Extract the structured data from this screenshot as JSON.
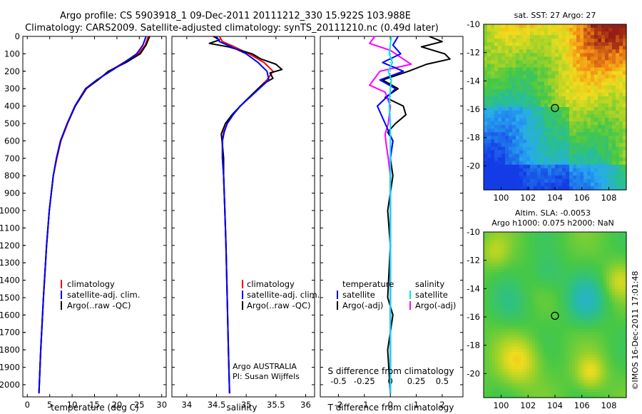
{
  "title": {
    "line1": "Argo profile: CS 5903918_1 09-Dec-2011 20111212_330 15.922S 103.988E",
    "line2": "Climatology: CARS2009. Satellite-adjusted climatology: synTS_20111210.nc (0.49d later)"
  },
  "colors": {
    "climatology": "#ff0000",
    "satellite_adj": "#0000ff",
    "argo": "#000000",
    "salinity_satellite": "#00e5ee",
    "salinity_argo": "#ff00ff"
  },
  "depth_axis": {
    "ticks": [
      "0",
      "100",
      "200",
      "300",
      "400",
      "500",
      "600",
      "700",
      "800",
      "900",
      "1000",
      "1100",
      "1200",
      "1300",
      "1400",
      "1500",
      "1600",
      "1700",
      "1800",
      "1900",
      "2000"
    ],
    "range": [
      0,
      2070
    ]
  },
  "chart_data": [
    {
      "type": "line",
      "name": "temperature-profile",
      "xlabel": "temperature (deg C)",
      "xlim": [
        -1,
        31
      ],
      "xticks": [
        "0",
        "5",
        "10",
        "15",
        "20",
        "25",
        "30"
      ],
      "ylim": [
        0,
        2070
      ],
      "legend": [
        "climatology",
        "satellite-adj. clim.",
        "Argo(..raw -QC)"
      ],
      "series": [
        {
          "name": "climatology",
          "depth": [
            0,
            50,
            100,
            150,
            200,
            250,
            300,
            400,
            500,
            600,
            700,
            800,
            1000,
            1200,
            1500,
            1800,
            2050
          ],
          "values": [
            27.0,
            26.3,
            24.8,
            21.5,
            18.3,
            15.6,
            13.2,
            10.7,
            9.0,
            7.5,
            6.6,
            5.8,
            4.9,
            4.3,
            3.6,
            3.0,
            2.6
          ]
        },
        {
          "name": "satellite-adj. clim.",
          "depth": [
            0,
            50,
            100,
            150,
            200,
            250,
            300,
            400,
            500,
            600,
            700,
            800,
            1000,
            1200,
            1500,
            1800,
            2050
          ],
          "values": [
            26.5,
            25.8,
            24.4,
            21.6,
            18.6,
            15.5,
            13.0,
            10.6,
            8.9,
            7.4,
            6.5,
            5.8,
            4.9,
            4.3,
            3.6,
            3.0,
            2.6
          ]
        },
        {
          "name": "Argo(..raw -QC)",
          "depth": [
            0,
            50,
            100,
            150,
            200,
            250,
            300,
            400,
            500,
            600,
            700,
            800,
            1000,
            1200,
            1500,
            1800,
            2050
          ],
          "values": [
            27.3,
            26.5,
            25.2,
            22.0,
            18.1,
            15.8,
            13.1,
            10.7,
            8.9,
            7.4,
            6.5,
            5.8,
            4.9,
            4.3,
            3.6,
            3.0,
            2.6
          ]
        }
      ]
    },
    {
      "type": "line",
      "name": "salinity-profile",
      "xlabel": "salinity",
      "xlim": [
        33.75,
        36.15
      ],
      "xticks": [
        "34",
        "34.5",
        "35",
        "35.5",
        "36"
      ],
      "ylim": [
        0,
        2070
      ],
      "legend": [
        "climatology",
        "satellite-adj. clim.",
        "Argo(..raw -QC)"
      ],
      "annotation": [
        "Argo AUSTRALIA",
        "PI: Susan Wijffels"
      ],
      "series": [
        {
          "name": "climatology",
          "depth": [
            0,
            30,
            60,
            100,
            150,
            200,
            250,
            300,
            350,
            400,
            450,
            500,
            550,
            600,
            700,
            800,
            1000,
            1200,
            1500,
            1800,
            2050
          ],
          "values": [
            34.55,
            34.6,
            34.8,
            35.05,
            35.3,
            35.45,
            35.35,
            35.2,
            35.05,
            34.9,
            34.78,
            34.68,
            34.62,
            34.6,
            34.6,
            34.62,
            34.64,
            34.66,
            34.68,
            34.7,
            34.72
          ]
        },
        {
          "name": "satellite-adj. clim.",
          "depth": [
            0,
            30,
            60,
            100,
            150,
            200,
            250,
            300,
            350,
            400,
            450,
            500,
            550,
            600,
            700,
            800,
            1000,
            1200,
            1500,
            1800,
            2050
          ],
          "values": [
            34.5,
            34.55,
            34.75,
            35.0,
            35.2,
            35.35,
            35.38,
            35.22,
            35.06,
            34.9,
            34.78,
            34.68,
            34.63,
            34.6,
            34.6,
            34.62,
            34.64,
            34.66,
            34.68,
            34.7,
            34.72
          ]
        },
        {
          "name": "Argo(..raw -QC)",
          "depth": [
            0,
            20,
            40,
            60,
            100,
            130,
            160,
            190,
            210,
            240,
            270,
            300,
            350,
            400,
            450,
            500,
            560,
            620,
            700,
            800,
            1000,
            1200,
            1500,
            1800,
            2050
          ],
          "values": [
            34.45,
            34.55,
            34.38,
            34.7,
            35.1,
            35.25,
            35.5,
            35.6,
            35.4,
            35.45,
            35.3,
            35.2,
            35.05,
            34.9,
            34.76,
            34.65,
            34.58,
            34.6,
            34.62,
            34.62,
            34.64,
            34.66,
            34.68,
            34.7,
            34.72
          ]
        }
      ]
    },
    {
      "type": "line",
      "name": "difference-profile",
      "xlabel": "T difference from climatology",
      "x2label": "S difference from climatology",
      "xlim": [
        -2.7,
        2.8
      ],
      "xticks": [
        "-2",
        "-1",
        "0",
        "1",
        "2"
      ],
      "x2ticks": [
        "-0.5",
        "-0.25",
        "0",
        "0.25",
        "0.5"
      ],
      "ylim": [
        0,
        2070
      ],
      "legend_temperature": [
        "temperature",
        "satellite",
        "Argo(-adj)"
      ],
      "legend_salinity": [
        "salinity",
        "satellite",
        "Argo(-adj)"
      ],
      "series": [
        {
          "name": "temperature satellite",
          "depth": [
            0,
            50,
            100,
            150,
            200,
            250,
            300,
            400,
            500,
            600,
            700,
            1000,
            1500,
            2050
          ],
          "values": [
            0.3,
            0.1,
            0.4,
            -0.3,
            0.5,
            -0.4,
            0.2,
            -0.5,
            -0.2,
            0.1,
            0.0,
            0.0,
            0.0,
            0.0
          ]
        },
        {
          "name": "temperature Argo(-adj)",
          "depth": [
            0,
            30,
            60,
            100,
            130,
            160,
            200,
            250,
            300,
            350,
            400,
            450,
            500,
            550,
            600,
            700,
            800,
            1000,
            1200,
            1500,
            1600,
            1800,
            2050
          ],
          "values": [
            1.5,
            2.0,
            1.2,
            2.1,
            2.3,
            1.4,
            0.7,
            -0.3,
            0.3,
            -0.2,
            0.5,
            0.6,
            0.2,
            -0.1,
            0.1,
            0.0,
            0.1,
            -0.1,
            0.0,
            -0.1,
            0.1,
            -0.1,
            0.0
          ]
        },
        {
          "name": "salinity satellite",
          "depth": [
            0,
            50,
            100,
            150,
            200,
            250,
            300,
            400,
            500,
            600,
            700,
            1000,
            1500,
            2050
          ],
          "values": [
            0.01,
            0.0,
            -0.01,
            0.02,
            -0.02,
            0.01,
            0.0,
            -0.01,
            0.0,
            0.0,
            0.0,
            0.0,
            0.0,
            0.0
          ]
        },
        {
          "name": "salinity Argo(-adj)",
          "depth": [
            0,
            40,
            80,
            120,
            160,
            200,
            240,
            280,
            320,
            400,
            500,
            560,
            620,
            700,
            800,
            1000,
            1500,
            2050
          ],
          "values": [
            -0.15,
            -0.2,
            0.0,
            0.1,
            0.2,
            -0.1,
            -0.15,
            -0.2,
            -0.05,
            0.0,
            -0.02,
            -0.05,
            -0.04,
            -0.02,
            0.0,
            0.0,
            0.0,
            0.0
          ]
        }
      ]
    },
    {
      "type": "heatmap",
      "name": "sst-map",
      "title": "sat. SST: 27  Argo: 27",
      "xlim": [
        98.7,
        109.3
      ],
      "ylim": [
        -21.7,
        -10.0
      ],
      "xticks": [
        "100",
        "102",
        "104",
        "106",
        "108"
      ],
      "yticks": [
        "-10",
        "-12",
        "-14",
        "-16",
        "-18",
        "-20"
      ],
      "marker": {
        "lon": 104.0,
        "lat": -15.92
      }
    },
    {
      "type": "heatmap",
      "name": "sla-map",
      "title_line1": "Altim. SLA: -0.0053",
      "title_line2": "Argo h1000: 0.075 h2000: NaN",
      "xlim": [
        98.7,
        109.3
      ],
      "ylim": [
        -21.7,
        -10.0
      ],
      "xticks": [
        "100",
        "102",
        "104",
        "106",
        "108"
      ],
      "yticks": [
        "-10",
        "-12",
        "-14",
        "-16",
        "-18",
        "-20"
      ],
      "marker": {
        "lon": 104.0,
        "lat": -15.92
      }
    }
  ],
  "credit": "©IMOS 16-Dec-2011 17:01:48"
}
